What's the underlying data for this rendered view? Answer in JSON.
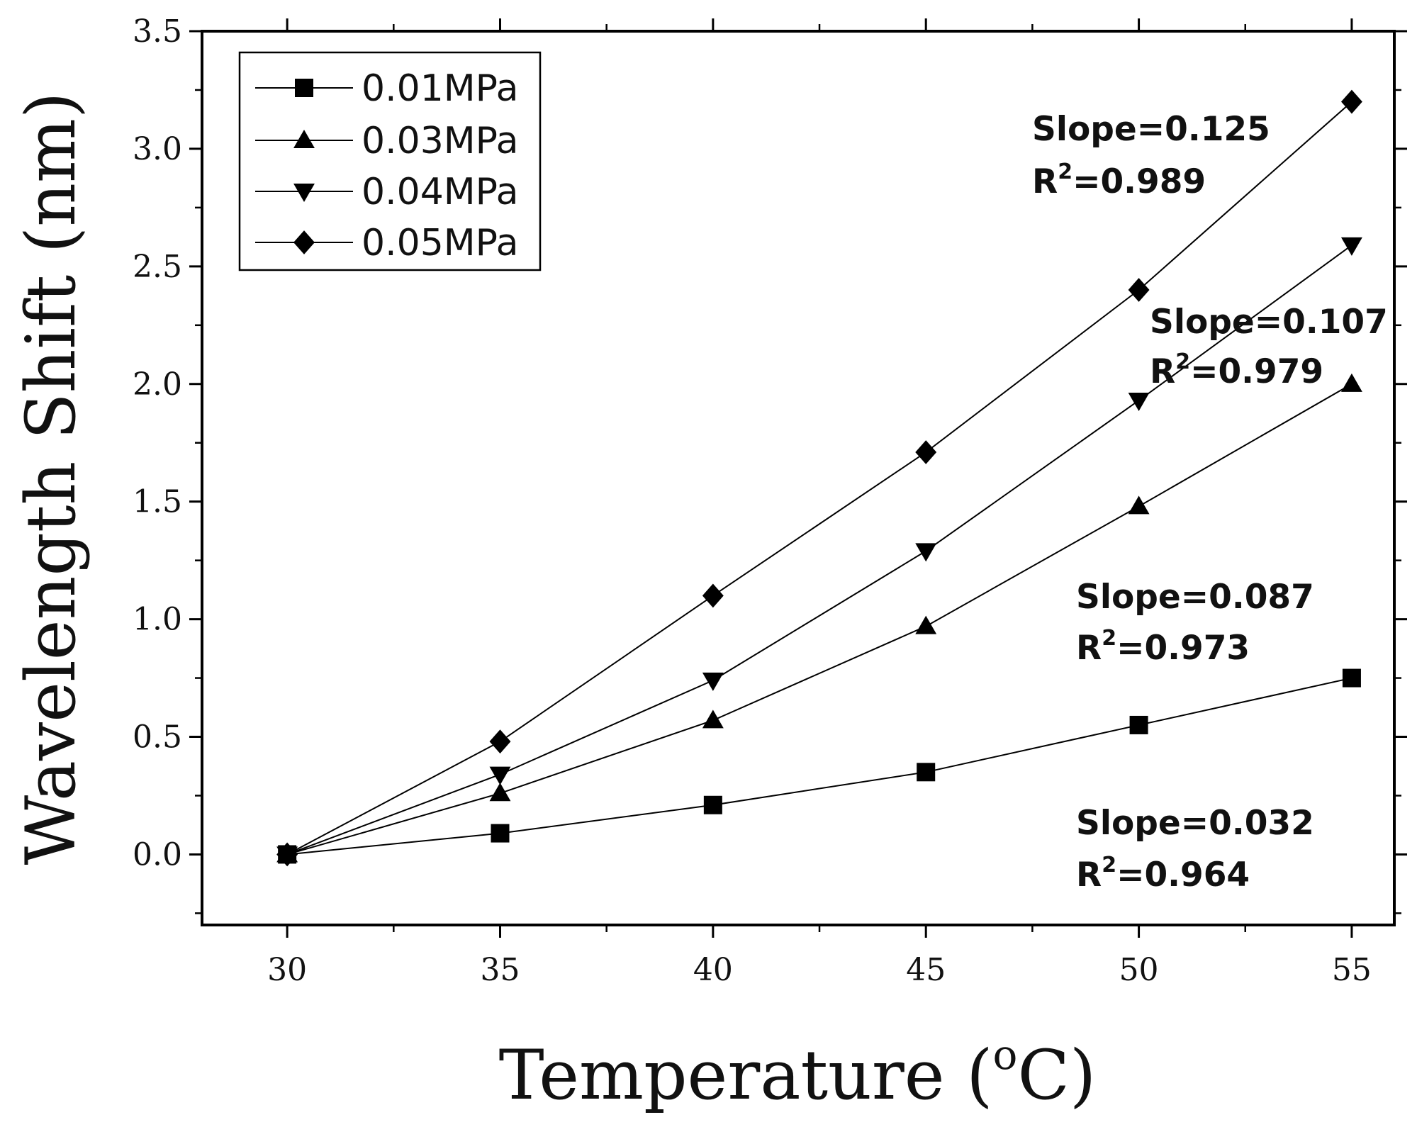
{
  "chart_data": {
    "type": "line",
    "title": "",
    "xlabel": "Temperature (",
    "xlabel_super": "o",
    "xlabel_end": "C)",
    "ylabel": "Wavelength Shift (nm)",
    "xlim": [
      28,
      56
    ],
    "ylim": [
      -0.3,
      3.5
    ],
    "x": [
      30,
      35,
      40,
      45,
      50,
      55
    ],
    "x_ticks": [
      30,
      35,
      40,
      45,
      50,
      55
    ],
    "x_tick_labels": [
      "30",
      "35",
      "40",
      "45",
      "50",
      "55"
    ],
    "y_ticks": [
      0.0,
      0.5,
      1.0,
      1.5,
      2.0,
      2.5,
      3.0,
      3.5
    ],
    "y_tick_labels": [
      "0.0",
      "0.5",
      "1.0",
      "1.5",
      "2.0",
      "2.5",
      "3.0",
      "3.5"
    ],
    "legend_position": "top-left",
    "grid": false,
    "series": [
      {
        "name": "0.01MPa",
        "marker": "square",
        "values": [
          0.0,
          0.09,
          0.21,
          0.35,
          0.55,
          0.75
        ]
      },
      {
        "name": "0.03MPa",
        "marker": "triangle-up",
        "values": [
          0.0,
          0.26,
          0.57,
          0.97,
          1.48,
          2.0
        ]
      },
      {
        "name": "0.04MPa",
        "marker": "triangle-down",
        "values": [
          0.0,
          0.34,
          0.74,
          1.29,
          1.93,
          2.59
        ]
      },
      {
        "name": "0.05MPa",
        "marker": "diamond",
        "values": [
          0.0,
          0.48,
          1.1,
          1.71,
          2.4,
          3.2
        ]
      }
    ],
    "annotations": [
      {
        "slope": "Slope=0.125",
        "r2_prefix": "R",
        "r2_sup": "2",
        "r2_value": "=0.989",
        "series": "0.05MPa"
      },
      {
        "slope": "Slope=0.107",
        "r2_prefix": "R",
        "r2_sup": "2",
        "r2_value": "=0.979",
        "series": "0.04MPa"
      },
      {
        "slope": "Slope=0.087",
        "r2_prefix": "R",
        "r2_sup": "2",
        "r2_value": "=0.973",
        "series": "0.03MPa"
      },
      {
        "slope": "Slope=0.032",
        "r2_prefix": "R",
        "r2_sup": "2",
        "r2_value": "=0.964",
        "series": "0.01MPa"
      }
    ]
  }
}
